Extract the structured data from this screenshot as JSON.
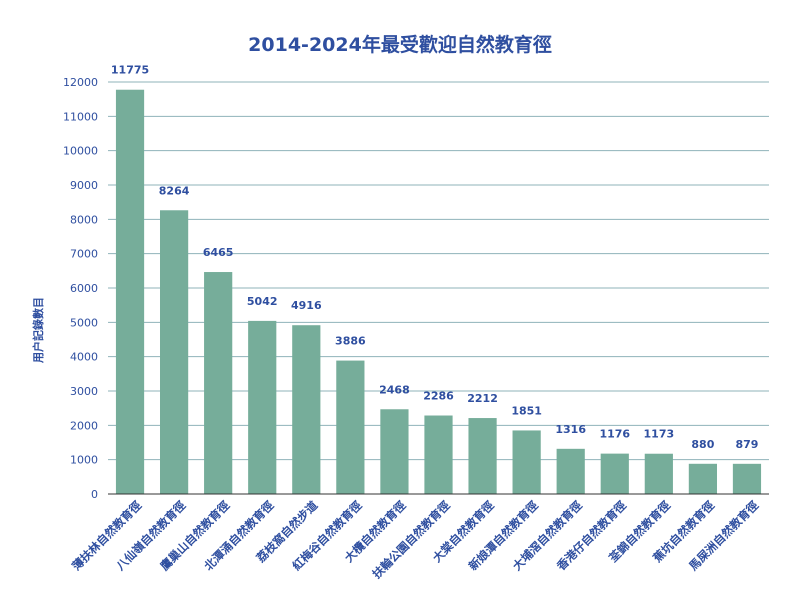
{
  "chart_data": {
    "type": "bar",
    "title": "2014-2024年最受歡迎自然教育徑",
    "xlabel": "",
    "ylabel": "用户記錄數目",
    "ylim": [
      0,
      12000
    ],
    "yticks": [
      0,
      1000,
      2000,
      3000,
      4000,
      5000,
      6000,
      7000,
      8000,
      9000,
      10000,
      11000,
      12000
    ],
    "grid": true,
    "bar_color": "#76ad9a",
    "text_color": "#2f4fa0",
    "categories": [
      "薄扶林自然教育徑",
      "八仙嶺自然教育徑",
      "鷹巢山自然教育徑",
      "北潭涌自然教育徑",
      "荔枝窩自然步道",
      "紅梅谷自然教育徑",
      "大欖自然教育徑",
      "扶輪公園自然教育徑",
      "大棠自然教育徑",
      "新娘潭自然教育徑",
      "大埔滘自然教育徑",
      "香港仔自然教育徑",
      "荃錦自然教育徑",
      "蕉坑自然教育徑",
      "馬屎洲自然教育徑"
    ],
    "values": [
      11775,
      8264,
      6465,
      5042,
      4916,
      3886,
      2468,
      2286,
      2212,
      1851,
      1316,
      1176,
      1173,
      880,
      879
    ]
  }
}
